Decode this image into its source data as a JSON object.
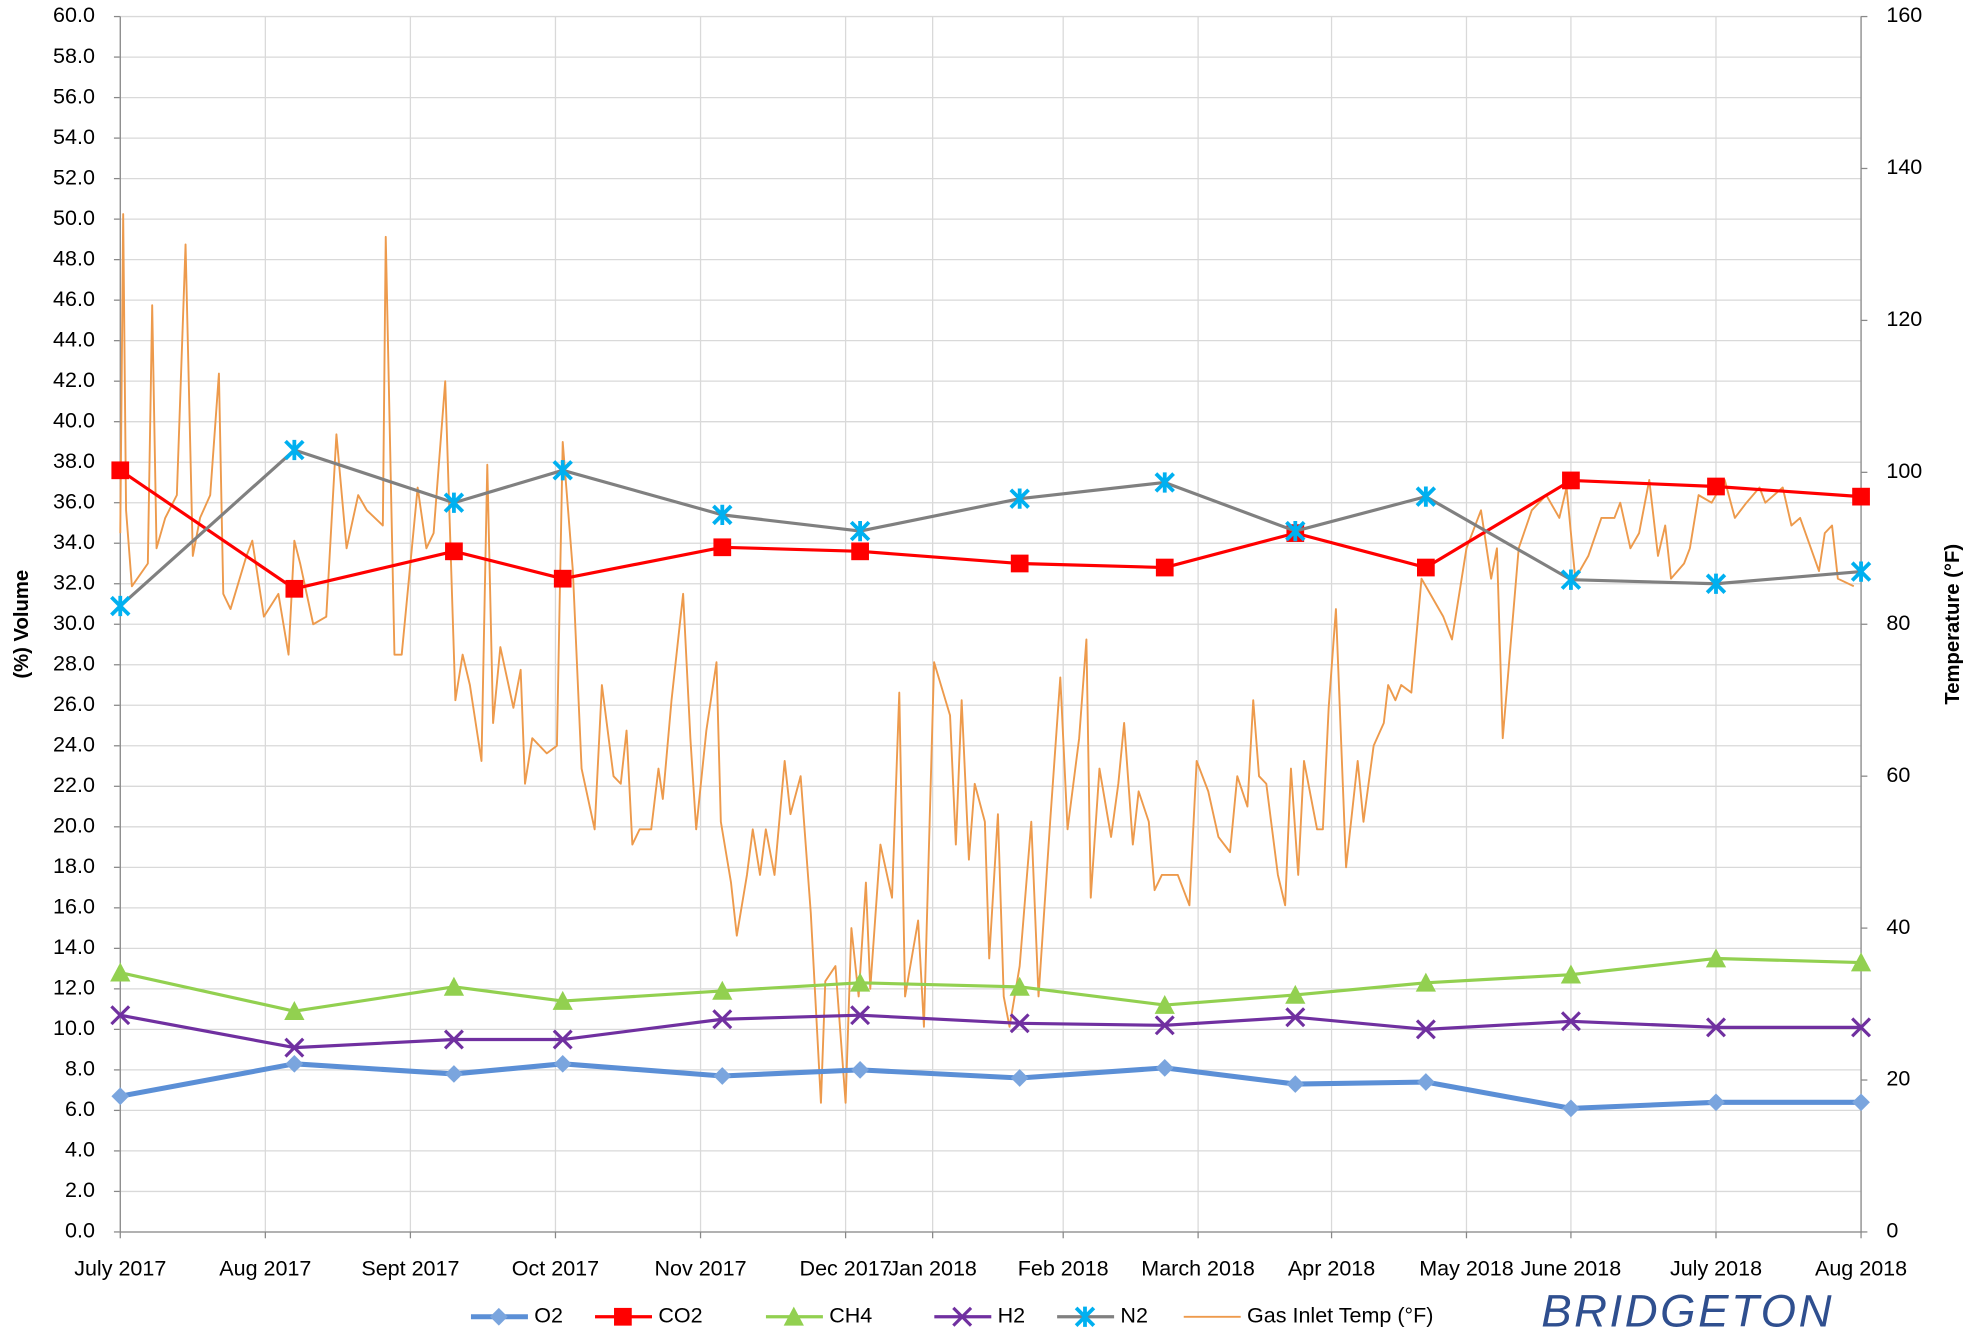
{
  "chart_data": {
    "type": "line",
    "y_label": "(%) Volume",
    "y2_label": "Temperature (°F)",
    "watermark": "BRIDGETON",
    "xlim": [
      0,
      12
    ],
    "ylim": [
      0,
      60
    ],
    "y2lim": [
      0,
      160
    ],
    "grid": true,
    "legend": "bottom",
    "xticks": [
      {
        "value": 0,
        "label": "July 2017"
      },
      {
        "value": 1,
        "label": "Aug 2017"
      },
      {
        "value": 2,
        "label": "Sept 2017"
      },
      {
        "value": 3,
        "label": "Oct 2017"
      },
      {
        "value": 4,
        "label": "Nov 2017"
      },
      {
        "value": 5,
        "label": "Dec 2017"
      },
      {
        "value": 5.6,
        "label": "Jan 2018"
      },
      {
        "value": 6.5,
        "label": "Feb 2018"
      },
      {
        "value": 7.43,
        "label": "March 2018"
      },
      {
        "value": 8.35,
        "label": "Apr 2018"
      },
      {
        "value": 9.28,
        "label": "May 2018"
      },
      {
        "value": 10,
        "label": "June 2018"
      },
      {
        "value": 11,
        "label": "July 2018"
      },
      {
        "value": 12,
        "label": "Aug 2018"
      }
    ],
    "yticks": [
      {
        "value": 0,
        "label": "0.0"
      },
      {
        "value": 2,
        "label": "2.0"
      },
      {
        "value": 4,
        "label": "4.0"
      },
      {
        "value": 6,
        "label": "6.0"
      },
      {
        "value": 8,
        "label": "8.0"
      },
      {
        "value": 10,
        "label": "10.0"
      },
      {
        "value": 12,
        "label": "12.0"
      },
      {
        "value": 14,
        "label": "14.0"
      },
      {
        "value": 16,
        "label": "16.0"
      },
      {
        "value": 18,
        "label": "18.0"
      },
      {
        "value": 20,
        "label": "20.0"
      },
      {
        "value": 22,
        "label": "22.0"
      },
      {
        "value": 24,
        "label": "24.0"
      },
      {
        "value": 26,
        "label": "26.0"
      },
      {
        "value": 28,
        "label": "28.0"
      },
      {
        "value": 30,
        "label": "30.0"
      },
      {
        "value": 32,
        "label": "32.0"
      },
      {
        "value": 34,
        "label": "34.0"
      },
      {
        "value": 36,
        "label": "36.0"
      },
      {
        "value": 38,
        "label": "38.0"
      },
      {
        "value": 40,
        "label": "40.0"
      },
      {
        "value": 42,
        "label": "42.0"
      },
      {
        "value": 44,
        "label": "44.0"
      },
      {
        "value": 46,
        "label": "46.0"
      },
      {
        "value": 48,
        "label": "48.0"
      },
      {
        "value": 50,
        "label": "50.0"
      },
      {
        "value": 52,
        "label": "52.0"
      },
      {
        "value": 54,
        "label": "54.0"
      },
      {
        "value": 56,
        "label": "56.0"
      },
      {
        "value": 58,
        "label": "58.0"
      },
      {
        "value": 60,
        "label": "60.0"
      }
    ],
    "y2ticks": [
      0,
      20,
      40,
      60,
      80,
      100,
      120,
      140,
      160
    ],
    "x": [
      0,
      1.2,
      2.3,
      3.05,
      4.15,
      5.1,
      6.2,
      7.2,
      8.1,
      9,
      10,
      11,
      12
    ],
    "series": [
      {
        "name": "O2",
        "color": "#5b8fd6",
        "marker": "diamond",
        "marker_color": "#7aa5de",
        "width": 4,
        "values": [
          6.7,
          8.3,
          7.8,
          8.3,
          7.7,
          8.0,
          7.6,
          8.1,
          7.3,
          7.4,
          6.1,
          6.4,
          6.4
        ]
      },
      {
        "name": "CO2",
        "color": "#ff0000",
        "marker": "square",
        "marker_color": "#ff0000",
        "width": 2.5,
        "values": [
          37.6,
          31.75,
          33.6,
          32.25,
          33.8,
          33.6,
          33.0,
          32.8,
          34.5,
          32.8,
          37.1,
          36.8,
          36.3
        ]
      },
      {
        "name": "CH4",
        "color": "#92d050",
        "marker": "triangle",
        "marker_color": "#92d050",
        "width": 2.5,
        "values": [
          12.8,
          10.9,
          12.1,
          11.4,
          11.9,
          12.3,
          12.1,
          11.2,
          11.7,
          12.3,
          12.7,
          13.5,
          13.3
        ]
      },
      {
        "name": "H2",
        "color": "#7030a0",
        "marker": "x",
        "marker_color": "#7030a0",
        "width": 2.5,
        "values": [
          10.7,
          9.1,
          9.5,
          9.5,
          10.5,
          10.7,
          10.3,
          10.2,
          10.6,
          10.0,
          10.4,
          10.1,
          10.1
        ]
      },
      {
        "name": "N2",
        "color": "#808080",
        "marker": "asterisk",
        "marker_color": "#00b0f0",
        "width": 2.5,
        "values": [
          30.9,
          38.6,
          36.0,
          37.6,
          35.4,
          34.6,
          36.2,
          37.0,
          34.6,
          36.3,
          32.2,
          32.0,
          32.6
        ]
      },
      {
        "name": "Gas Inlet Temp (°F)",
        "color": "#ed9a4c",
        "marker": "none",
        "width": 1.5,
        "axis": "y2",
        "x": [
          0,
          0.02,
          0.04,
          0.08,
          0.19,
          0.22,
          0.25,
          0.31,
          0.39,
          0.45,
          0.5,
          0.55,
          0.62,
          0.68,
          0.71,
          0.76,
          0.87,
          0.91,
          0.99,
          1.09,
          1.16,
          1.2,
          1.24,
          1.33,
          1.42,
          1.49,
          1.56,
          1.64,
          1.7,
          1.81,
          1.83,
          1.89,
          1.94,
          2.05,
          2.11,
          2.16,
          2.24,
          2.31,
          2.36,
          2.41,
          2.49,
          2.53,
          2.57,
          2.62,
          2.71,
          2.76,
          2.79,
          2.84,
          2.94,
          3.01,
          3.05,
          3.12,
          3.18,
          3.27,
          3.32,
          3.4,
          3.45,
          3.49,
          3.53,
          3.58,
          3.66,
          3.71,
          3.74,
          3.8,
          3.88,
          3.93,
          3.97,
          4.04,
          4.11,
          4.14,
          4.21,
          4.25,
          4.32,
          4.36,
          4.41,
          4.45,
          4.51,
          4.58,
          4.62,
          4.69,
          4.76,
          4.83,
          4.86,
          4.93,
          5.0,
          5.04,
          5.09,
          5.14,
          5.17,
          5.24,
          5.32,
          5.37,
          5.41,
          5.5,
          5.54,
          5.61,
          5.72,
          5.76,
          5.8,
          5.85,
          5.89,
          5.96,
          5.99,
          6.05,
          6.09,
          6.13,
          6.2,
          6.28,
          6.33,
          6.41,
          6.48,
          6.53,
          6.61,
          6.66,
          6.69,
          6.75,
          6.83,
          6.88,
          6.92,
          6.98,
          7.02,
          7.09,
          7.13,
          7.18,
          7.29,
          7.37,
          7.42,
          7.5,
          7.57,
          7.65,
          7.7,
          7.77,
          7.81,
          7.85,
          7.9,
          7.98,
          8.03,
          8.07,
          8.12,
          8.16,
          8.25,
          8.29,
          8.33,
          8.38,
          8.45,
          8.53,
          8.57,
          8.64,
          8.71,
          8.74,
          8.79,
          8.83,
          8.9,
          8.97,
          9.03,
          9.12,
          9.18,
          9.28,
          9.38,
          9.45,
          9.49,
          9.53,
          9.64,
          9.73,
          9.83,
          9.92,
          9.97,
          10.03,
          10.12,
          10.21,
          10.3,
          10.34,
          10.41,
          10.47,
          10.54,
          10.6,
          10.65,
          10.69,
          10.78,
          10.82,
          10.88,
          10.97,
          11.06,
          11.13,
          11.21,
          11.3,
          11.34,
          11.46,
          11.52,
          11.58,
          11.71,
          11.75,
          11.8,
          11.84,
          11.95
        ],
        "values": [
          92,
          134,
          95,
          85,
          88,
          122,
          90,
          94,
          97,
          130,
          89,
          94,
          97,
          113,
          84,
          82,
          89,
          91,
          81,
          84,
          76,
          91,
          88,
          80,
          81,
          105,
          90,
          97,
          95,
          93,
          131,
          76,
          76,
          98,
          90,
          92,
          112,
          70,
          76,
          72,
          62,
          101,
          67,
          77,
          69,
          74,
          59,
          65,
          63,
          64,
          104,
          87,
          61,
          53,
          72,
          60,
          59,
          66,
          51,
          53,
          53,
          61,
          57,
          70,
          84,
          65,
          53,
          66,
          75,
          54,
          46,
          39,
          47,
          53,
          47,
          53,
          47,
          62,
          55,
          60,
          42,
          17,
          33,
          35,
          17,
          40,
          31,
          46,
          32,
          51,
          44,
          71,
          31,
          41,
          27,
          75,
          68,
          51,
          70,
          49,
          59,
          54,
          36,
          55,
          31,
          27,
          35,
          54,
          31,
          54,
          73,
          53,
          65,
          78,
          44,
          61,
          52,
          59,
          67,
          51,
          58,
          54,
          45,
          47,
          47,
          43,
          62,
          58,
          52,
          50,
          60,
          56,
          70,
          60,
          59,
          47,
          43,
          61,
          47,
          62,
          53,
          53,
          69,
          82,
          48,
          62,
          54,
          64,
          67,
          72,
          70,
          72,
          71,
          86,
          84,
          81,
          78,
          90,
          95,
          86,
          90,
          65,
          90,
          95,
          97,
          94,
          98,
          86,
          89,
          94,
          94,
          96,
          90,
          92,
          99,
          89,
          93,
          86,
          88,
          90,
          97,
          96,
          99,
          94,
          96,
          98,
          96,
          98,
          93,
          94,
          87,
          92,
          93,
          86,
          85
        ]
      }
    ]
  }
}
